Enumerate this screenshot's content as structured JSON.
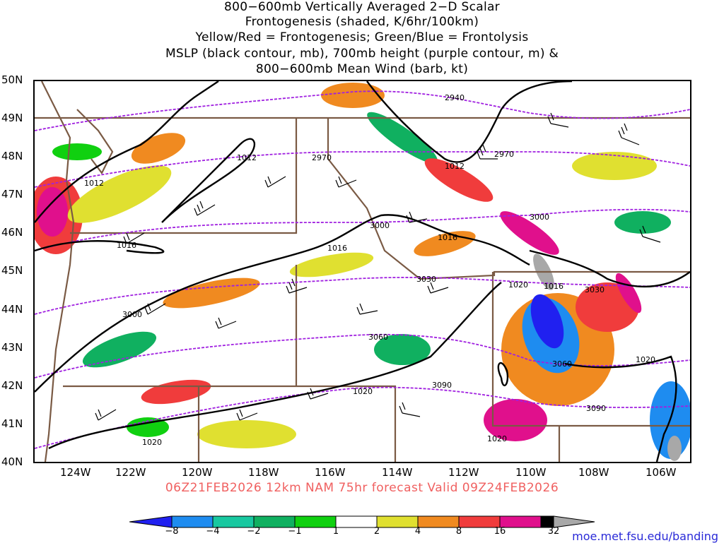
{
  "title_lines": [
    "800−600mb Vertically Averaged 2−D Scalar",
    "Frontogenesis (shaded, K/6hr/100km)",
    "Yellow/Red = Frontogenesis;  Green/Blue = Frontolysis",
    "MSLP (black contour, mb), 700mb height (purple contour, m) &",
    "800−600mb Mean Wind (barb, kt)"
  ],
  "lat_labels": [
    "50N",
    "49N",
    "48N",
    "47N",
    "46N",
    "45N",
    "44N",
    "43N",
    "42N",
    "41N",
    "40N"
  ],
  "lon_labels": [
    "124W",
    "122W",
    "120W",
    "118W",
    "116W",
    "114W",
    "112W",
    "110W",
    "108W",
    "106W"
  ],
  "mslp_labels": [
    "1012",
    "1012",
    "1012",
    "1016",
    "1016",
    "1016",
    "1016",
    "1020",
    "1020",
    "1020",
    "1020",
    "1020"
  ],
  "height_labels": [
    "2940",
    "2970",
    "2970",
    "3000",
    "3000",
    "3000",
    "3030",
    "3030",
    "3060",
    "3060",
    "3090",
    "3090"
  ],
  "valid_text": "06Z21FEB2026 12km NAM 75hr forecast Valid 09Z24FEB2026",
  "credit": "moe.met.fsu.edu/banding",
  "colorbar": {
    "labels": [
      "−8",
      "−4",
      "−2",
      "−1",
      "1",
      "2",
      "4",
      "8",
      "16",
      "32"
    ],
    "colors": [
      "#2020f0",
      "#1e8cf0",
      "#18c8a0",
      "#10b060",
      "#10d010",
      "#ffffff",
      "#e0e030",
      "#f08a20",
      "#f03c3c",
      "#e0108c",
      "#000000",
      "#a8a8a8"
    ]
  },
  "legend_colors": {
    "mslp": "#000000",
    "height": "#a020e0",
    "borders": "#7a5a44"
  }
}
